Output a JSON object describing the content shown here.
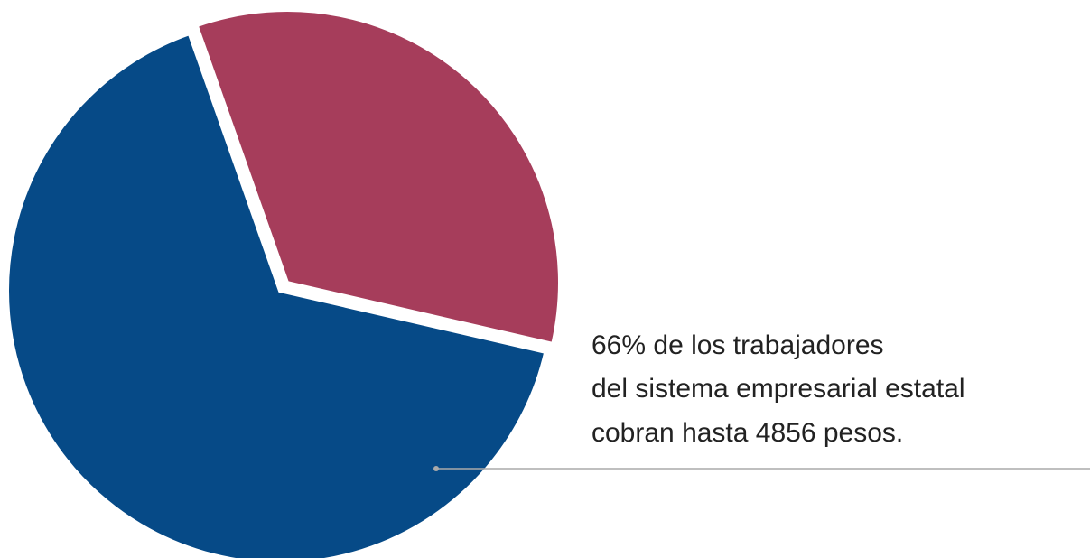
{
  "chart_data": {
    "type": "pie",
    "categories": [
      null,
      null
    ],
    "values": [
      66,
      34
    ],
    "colors": [
      "#064a87",
      "#a63d5b"
    ],
    "annotation": [
      "66% de los trabajadores",
      "del sistema empresarial estatal",
      "cobran hasta 4856 pesos."
    ]
  }
}
